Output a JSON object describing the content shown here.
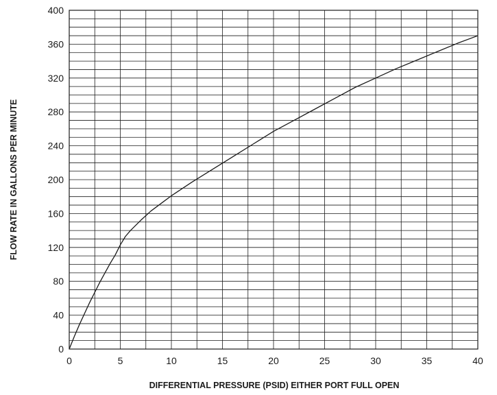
{
  "chart_data": {
    "type": "line",
    "title": "",
    "xlabel": "DIFFERENTIAL PRESSURE (PSID) EITHER PORT FULL OPEN",
    "ylabel": "FLOW RATE IN GALLONS PER MINUTE",
    "xlim": [
      0,
      40
    ],
    "ylim": [
      0,
      400
    ],
    "x_ticks": [
      0,
      5,
      10,
      15,
      20,
      25,
      30,
      35,
      40
    ],
    "y_ticks": [
      0,
      40,
      80,
      120,
      160,
      200,
      240,
      280,
      320,
      360,
      400
    ],
    "x_tick_labels": [
      "0",
      "5",
      "10",
      "15",
      "20",
      "25",
      "30",
      "35",
      "40"
    ],
    "y_tick_labels": [
      "0",
      "40",
      "80",
      "120",
      "160",
      "200",
      "240",
      "280",
      "320",
      "360",
      "400"
    ],
    "grid": true,
    "x_minor_step": 2.5,
    "y_minor_step": 10,
    "legend": "none",
    "line_color": "#1a1a1a",
    "grid_color": "#1a1a1a",
    "series": [
      {
        "x": [
          0,
          0.5,
          1,
          1.5,
          2,
          2.5,
          3,
          3.5,
          4,
          4.5,
          5,
          5.5,
          6,
          7,
          8,
          9,
          10,
          12,
          14,
          16,
          18,
          20,
          22,
          24,
          26,
          28,
          30,
          32,
          34,
          36,
          38,
          40
        ],
        "values": [
          0,
          15,
          29,
          42,
          55,
          67,
          79,
          90,
          101,
          111,
          123,
          133,
          140,
          152,
          163,
          172,
          181,
          197,
          212,
          227,
          242,
          257,
          270,
          283,
          296,
          309,
          320,
          331,
          341,
          351,
          361,
          370
        ]
      }
    ]
  }
}
